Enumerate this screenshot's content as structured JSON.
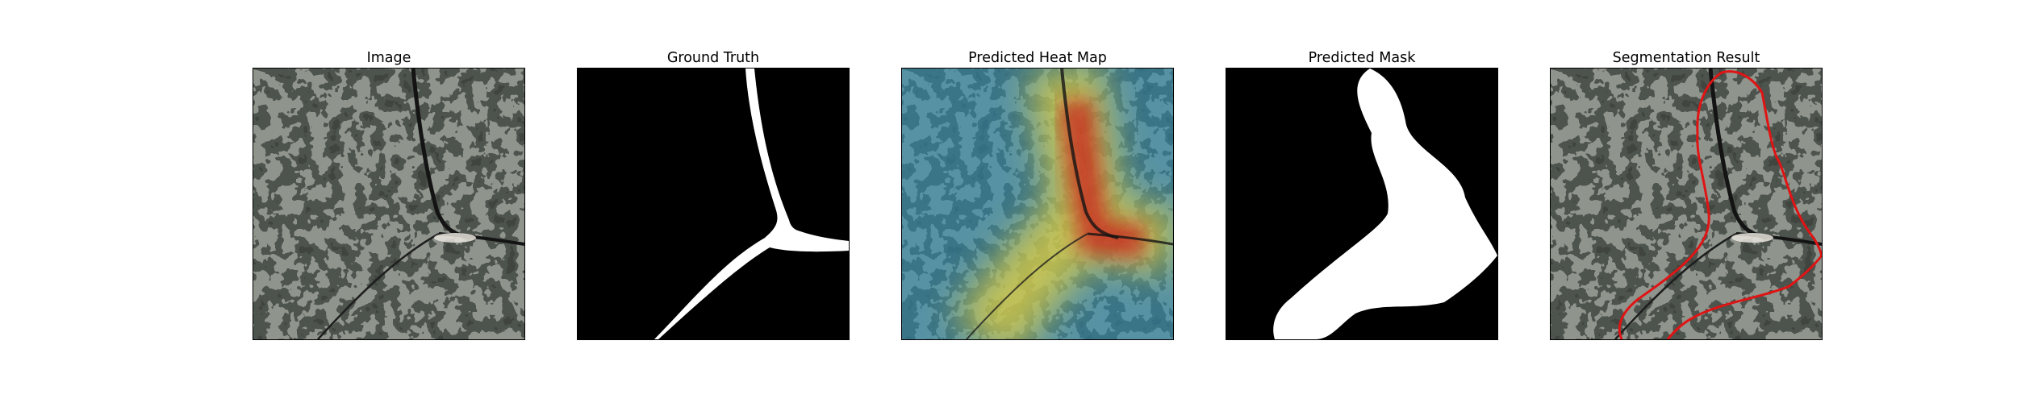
{
  "figure": {
    "panels": [
      {
        "id": "image",
        "title": "Image",
        "icon": "crack-texture-photo"
      },
      {
        "id": "ground-truth",
        "title": "Ground Truth",
        "icon": "binary-mask"
      },
      {
        "id": "heat-map",
        "title": "Predicted Heat Map",
        "icon": "heatmap-overlay"
      },
      {
        "id": "pred-mask",
        "title": "Predicted Mask",
        "icon": "binary-mask"
      },
      {
        "id": "segmentation",
        "title": "Segmentation Result",
        "icon": "contour-overlay"
      }
    ],
    "colors": {
      "stone_base": "#8f958d",
      "stone_dark": "#3a3d39",
      "crack": "#141414",
      "mask_foreground": "#ffffff",
      "mask_background": "#000000",
      "contour": "#e01414",
      "heat_low": "#3f8fc4",
      "heat_mid": "#e6d23c",
      "heat_high": "#c8231e"
    }
  }
}
